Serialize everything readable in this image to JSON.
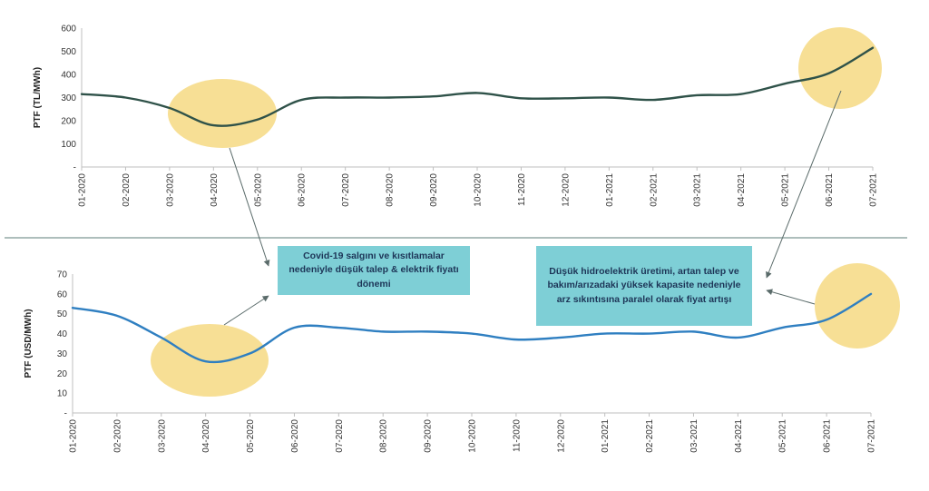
{
  "colors": {
    "top_line": "#2f5249",
    "bottom_line": "#2f7fc1",
    "highlight": "#f6d982",
    "callout_bg": "#7ecfd6",
    "callout_text": "#1d3557",
    "divider": "#7d9694"
  },
  "annotations": {
    "covid": "Covid-19 salgını ve kısıtlamalar nedeniyle düşük talep & elektrik fiyatı dönemi",
    "hydro": "Düşük hidroelektrik üretimi, artan talep ve bakım/arızadaki yüksek kapasite nedeniyle arz sıkıntısına paralel olarak fiyat artışı"
  },
  "chart_data": [
    {
      "type": "line",
      "title": "",
      "ylabel": "PTF (TL/MWh)",
      "xlabel": "",
      "categories": [
        "01-2020",
        "02-2020",
        "03-2020",
        "04-2020",
        "05-2020",
        "06-2020",
        "07-2020",
        "08-2020",
        "09-2020",
        "10-2020",
        "11-2020",
        "12-2020",
        "01-2021",
        "02-2021",
        "03-2021",
        "04-2021",
        "05-2021",
        "06-2021",
        "07-2021"
      ],
      "series": [
        {
          "values": [
            315,
            300,
            255,
            180,
            205,
            290,
            300,
            300,
            305,
            320,
            297,
            297,
            300,
            290,
            310,
            315,
            360,
            405,
            515
          ]
        }
      ],
      "ylim": [
        0,
        600
      ],
      "yticks": [
        "-",
        "100",
        "200",
        "300",
        "400",
        "500",
        "600"
      ],
      "grid": false,
      "highlights": [
        "04-2020",
        "06-2021"
      ]
    },
    {
      "type": "line",
      "title": "",
      "ylabel": "PTF (USD/MWh)",
      "xlabel": "",
      "categories": [
        "01-2020",
        "02-2020",
        "03-2020",
        "04-2020",
        "05-2020",
        "06-2020",
        "07-2020",
        "08-2020",
        "09-2020",
        "10-2020",
        "11-2020",
        "12-2020",
        "01-2021",
        "02-2021",
        "03-2021",
        "04-2021",
        "05-2021",
        "06-2021",
        "07-2021"
      ],
      "series": [
        {
          "values": [
            53,
            49,
            38,
            26,
            30,
            43,
            43,
            41,
            41,
            40,
            37,
            38,
            40,
            40,
            41,
            38,
            43,
            47,
            60
          ]
        }
      ],
      "ylim": [
        0,
        70
      ],
      "yticks": [
        "-",
        "10",
        "20",
        "30",
        "40",
        "50",
        "60",
        "70"
      ],
      "grid": false,
      "highlights": [
        "04-2020",
        "06-2021"
      ]
    }
  ]
}
